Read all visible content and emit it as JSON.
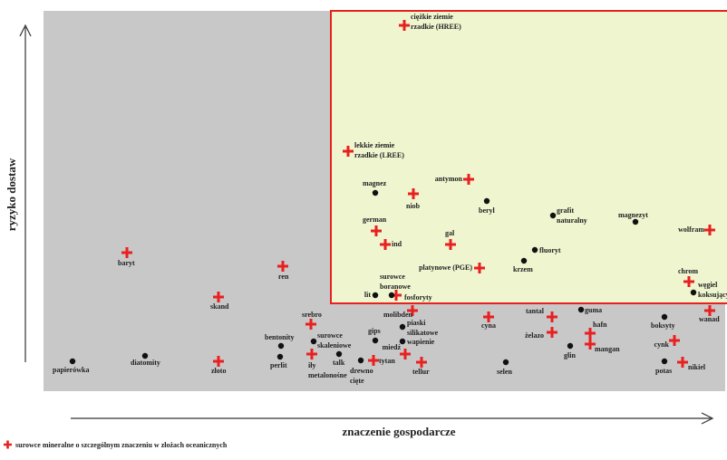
{
  "y_axis_label": "ryzyko dostaw",
  "x_axis_label": "znaczenie gospodarcze",
  "legend": "surowce mineralne o szczególnym znaczeniu w złożach oceanicznych",
  "crosses": [
    [
      "ciężkie ziemie",
      "rzadkie (HREE)"
    ],
    [
      "lekkie ziemie",
      "rzadkie (LREE)"
    ],
    [
      "antymon"
    ],
    [
      "niob"
    ],
    [
      "german"
    ],
    [
      "ind"
    ],
    [
      "gal"
    ],
    [
      "platynowe (PGE)"
    ],
    [
      "fosforyty"
    ],
    [
      "baryt"
    ],
    [
      "ren"
    ],
    [
      "skand"
    ],
    [
      "srebro"
    ],
    [
      "iły",
      "metalonośne"
    ],
    [
      "złoto"
    ],
    [
      "tytan"
    ],
    [
      "miedź"
    ],
    [
      "tellur"
    ],
    [
      "molibden"
    ],
    [
      "cyna"
    ],
    [
      "tantal"
    ],
    [
      "żelazo"
    ],
    [
      "hafn"
    ],
    [
      "mangan"
    ],
    [
      "wolfram"
    ],
    [
      "chrom"
    ],
    [
      "wanad"
    ],
    [
      "cynk"
    ],
    [
      "nikiel"
    ]
  ],
  "dots": [
    [
      "magnez"
    ],
    [
      "beryl"
    ],
    [
      "grafit",
      "naturalny"
    ],
    [
      "magnezyt"
    ],
    [
      "fluoryt"
    ],
    [
      "krzem"
    ],
    [
      "lit"
    ],
    [
      "surowce",
      "boranowe"
    ],
    [
      "guma"
    ],
    [
      "węgiel",
      "koksujący"
    ],
    [
      "boksyty"
    ],
    [
      "potas"
    ],
    [
      "selen"
    ],
    [
      "glin"
    ],
    [
      "piaski",
      "silikatowe"
    ],
    [
      "wapienie"
    ],
    [
      "gips"
    ],
    [
      "surowce",
      "skaleniowe"
    ],
    [
      "bentonity"
    ],
    [
      "perlit"
    ],
    [
      "talk"
    ],
    [
      "drewno",
      "cięte"
    ],
    [
      "papierówka"
    ],
    [
      "diatomity"
    ]
  ]
}
